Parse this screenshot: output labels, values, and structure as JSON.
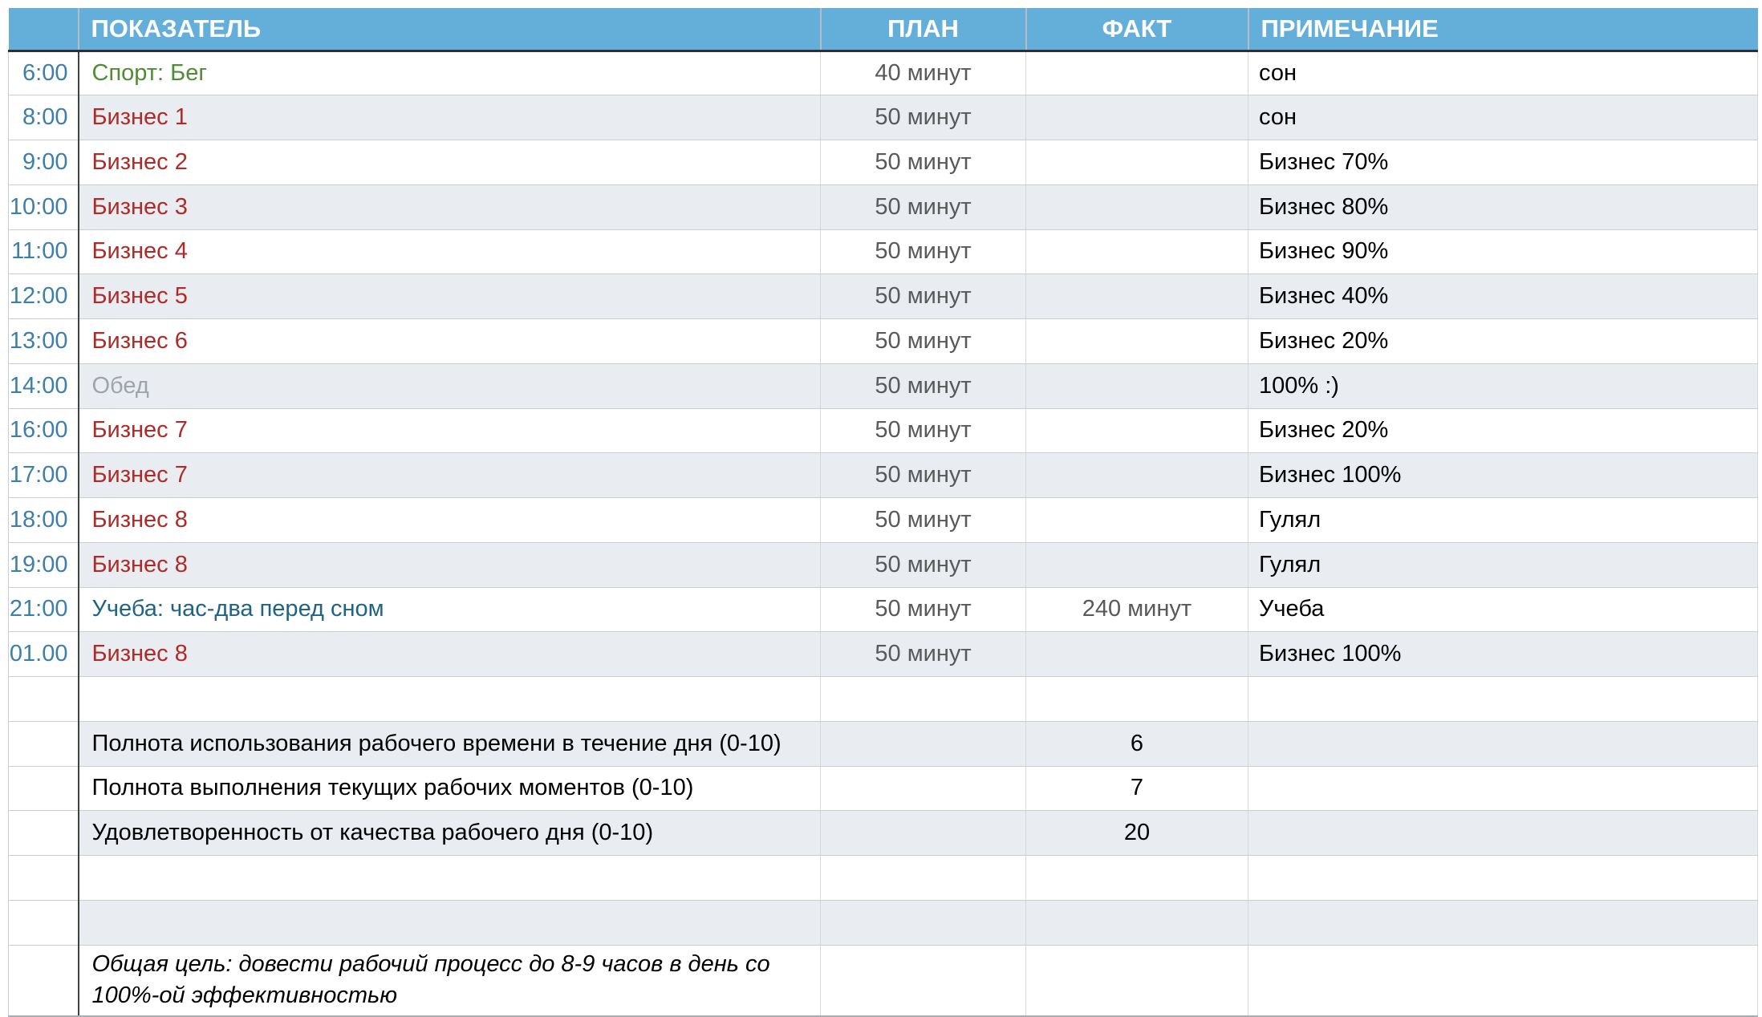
{
  "table": {
    "columns": {
      "time": "",
      "indicator": "ПОКАЗАТЕЛЬ",
      "plan": "ПЛАН",
      "fact": "ФАКТ",
      "note": "ПРИМЕЧАНИЕ"
    },
    "rows": [
      {
        "time": "6:00",
        "indicator": "Спорт: Бег",
        "indicator_style": "green",
        "plan": "40 минут",
        "fact": "",
        "note": "сон",
        "shaded": false
      },
      {
        "time": "8:00",
        "indicator": "Бизнес 1",
        "indicator_style": "red",
        "plan": "50 минут",
        "fact": "",
        "note": "сон",
        "shaded": true
      },
      {
        "time": "9:00",
        "indicator": "Бизнес 2",
        "indicator_style": "red",
        "plan": "50 минут",
        "fact": "",
        "note": "Бизнес 70%",
        "shaded": false
      },
      {
        "time": "10:00",
        "indicator": "Бизнес 3",
        "indicator_style": "red",
        "plan": "50 минут",
        "fact": "",
        "note": "Бизнес 80%",
        "shaded": true
      },
      {
        "time": "11:00",
        "indicator": "Бизнес 4",
        "indicator_style": "red",
        "plan": "50 минут",
        "fact": "",
        "note": "Бизнес 90%",
        "shaded": false
      },
      {
        "time": "12:00",
        "indicator": "Бизнес 5",
        "indicator_style": "red",
        "plan": "50 минут",
        "fact": "",
        "note": "Бизнес 40%",
        "shaded": true
      },
      {
        "time": "13:00",
        "indicator": "Бизнес 6",
        "indicator_style": "red",
        "plan": "50 минут",
        "fact": "",
        "note": "Бизнес 20%",
        "shaded": false
      },
      {
        "time": "14:00",
        "indicator": "Обед",
        "indicator_style": "gray",
        "plan": "50 минут",
        "fact": "",
        "note": "100% :)",
        "shaded": true
      },
      {
        "time": "16:00",
        "indicator": "Бизнес 7",
        "indicator_style": "red",
        "plan": "50 минут",
        "fact": "",
        "note": "Бизнес 20%",
        "shaded": false
      },
      {
        "time": "17:00",
        "indicator": "Бизнес 7",
        "indicator_style": "red",
        "plan": "50 минут",
        "fact": "",
        "note": "Бизнес 100%",
        "shaded": true
      },
      {
        "time": "18:00",
        "indicator": "Бизнес 8",
        "indicator_style": "red",
        "plan": "50 минут",
        "fact": "",
        "note": "Гулял",
        "shaded": false
      },
      {
        "time": "19:00",
        "indicator": "Бизнес 8",
        "indicator_style": "red",
        "plan": "50 минут",
        "fact": "",
        "note": "Гулял",
        "shaded": true
      },
      {
        "time": "21:00",
        "indicator": "Учеба: час-два перед сном",
        "indicator_style": "blue",
        "plan": "50 минут",
        "fact": "240 минут",
        "note": "Учеба",
        "shaded": false
      },
      {
        "time": "01.00",
        "indicator": "Бизнес 8",
        "indicator_style": "red",
        "plan": "50 минут",
        "fact": "",
        "note": "Бизнес 100%",
        "shaded": true
      },
      {
        "time": "",
        "indicator": "",
        "indicator_style": "black",
        "plan": "",
        "fact": "",
        "note": "",
        "shaded": false
      },
      {
        "time": "",
        "indicator": "Полнота использования рабочего времени в течение дня (0-10)",
        "indicator_style": "black",
        "plan": "",
        "fact": "6",
        "fact_style": "black",
        "note": "",
        "shaded": true
      },
      {
        "time": "",
        "indicator": "Полнота выполнения текущих рабочих моментов (0-10)",
        "indicator_style": "black",
        "plan": "",
        "fact": "7",
        "fact_style": "black",
        "note": "",
        "shaded": false
      },
      {
        "time": "",
        "indicator": "Удовлетворенность от качества рабочего дня (0-10)",
        "indicator_style": "black",
        "plan": "",
        "fact": "20",
        "fact_style": "black",
        "note": "",
        "shaded": true
      },
      {
        "time": "",
        "indicator": "",
        "indicator_style": "black",
        "plan": "",
        "fact": "",
        "note": "",
        "shaded": false
      },
      {
        "time": "",
        "indicator": "",
        "indicator_style": "black",
        "plan": "",
        "fact": "",
        "note": "",
        "shaded": true
      },
      {
        "time": "",
        "indicator": "Общая цель: довести рабочий процесс до 8-9 часов в день со 100%-ой эффективностью",
        "indicator_style": "italic",
        "plan": "",
        "fact": "",
        "note": "",
        "shaded": false,
        "tall": true
      }
    ],
    "colors": {
      "header_bg": "#64aeda",
      "header_text": "#ffffff",
      "row_alt_bg": "#e9edf2",
      "time_text": "#3e7fa9",
      "green": "#4e8d33",
      "red": "#b02b27",
      "gray": "#9fa4aa",
      "blue": "#1f6386",
      "muted": "#595959",
      "black": "#000000"
    }
  }
}
